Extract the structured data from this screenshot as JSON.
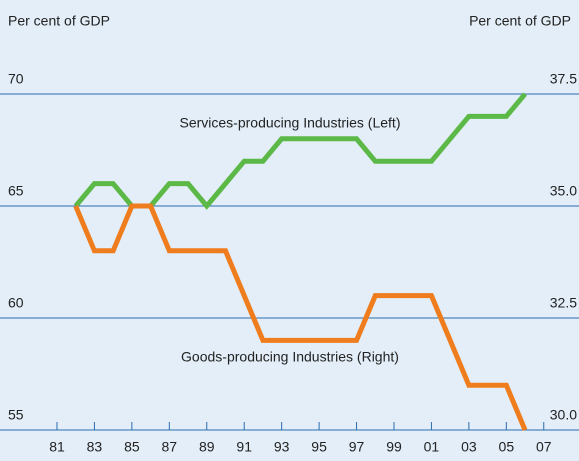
{
  "chart_data": {
    "type": "line",
    "y_label": "Per cent of GDP",
    "y2_label": "Per cent of GDP",
    "x": [
      1982,
      1983,
      1984,
      1985,
      1986,
      1987,
      1988,
      1989,
      1990,
      1991,
      1992,
      1993,
      1994,
      1995,
      1996,
      1997,
      1998,
      1999,
      2000,
      2001,
      2002,
      2003,
      2004,
      2005,
      2006
    ],
    "series": [
      {
        "name": "Services-producing Industries (Left)",
        "color": "#5cb947",
        "values": [
          65,
          66,
          66,
          65,
          65,
          66,
          66,
          65,
          66,
          67,
          67,
          68,
          68,
          68,
          68,
          68,
          67,
          67,
          67,
          67,
          68,
          69,
          69,
          69,
          70
        ]
      },
      {
        "name": "Goods-producing Industries (Right)",
        "color": "#ef7d1e",
        "axis": "y2",
        "values": [
          35,
          34,
          34,
          35,
          35,
          34,
          34,
          34,
          34,
          33,
          32,
          32,
          32,
          32,
          32,
          32,
          33,
          33,
          33,
          33,
          32,
          31,
          31,
          31,
          30
        ]
      }
    ],
    "xlim": [
      1980.2,
      2007.6
    ],
    "xticks": [
      {
        "value": 1981,
        "label": "81"
      },
      {
        "value": 1983,
        "label": "83"
      },
      {
        "value": 1985,
        "label": "85"
      },
      {
        "value": 1987,
        "label": "87"
      },
      {
        "value": 1989,
        "label": "89"
      },
      {
        "value": 1991,
        "label": "91"
      },
      {
        "value": 1993,
        "label": "93"
      },
      {
        "value": 1995,
        "label": "95"
      },
      {
        "value": 1997,
        "label": "97"
      },
      {
        "value": 1999,
        "label": "99"
      },
      {
        "value": 2001,
        "label": "01"
      },
      {
        "value": 2003,
        "label": "03"
      },
      {
        "value": 2005,
        "label": "05"
      },
      {
        "value": 2007,
        "label": "07"
      }
    ],
    "ylim": [
      55,
      70
    ],
    "yticks": [
      55,
      60,
      65,
      70
    ],
    "y2lim": [
      30,
      37.5
    ],
    "y2ticks": [
      {
        "value": 30,
        "label": "30.0"
      },
      32.5,
      {
        "value": 35,
        "label": "35.0"
      },
      37.5
    ],
    "grid": true
  }
}
